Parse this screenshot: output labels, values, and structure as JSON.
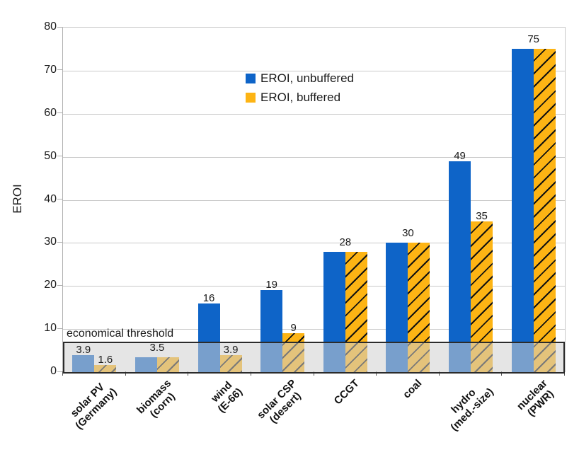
{
  "chart_data": {
    "type": "bar",
    "title": "",
    "ylabel": "EROI",
    "xlabel": "",
    "ylim": [
      0,
      80
    ],
    "ytick_step": 10,
    "yticks": [
      0,
      10,
      20,
      30,
      40,
      50,
      60,
      70,
      80
    ],
    "grid": "horizontal",
    "legend_position": "upper area, left-of-center",
    "categories": [
      "solar PV\n(Germany)",
      "biomass\n(corn)",
      "wind\n(E-66)",
      "solar CSP\n(desert)",
      "CCGT",
      "coal",
      "hydro\n(med.-size)",
      "nuclear\n(PWR)"
    ],
    "series": [
      {
        "name": "EROI, unbuffered",
        "color": "#0E64C8",
        "hatch": false,
        "values": [
          3.9,
          3.5,
          16,
          19,
          28,
          30,
          49,
          75
        ],
        "value_labels": [
          "3.9",
          "3.5",
          "16",
          "19",
          "28",
          "30",
          "49",
          "75"
        ]
      },
      {
        "name": "EROI, buffered",
        "color": "#FDB414",
        "hatch": true,
        "values": [
          1.6,
          3.5,
          3.9,
          9,
          28,
          30,
          35,
          75
        ],
        "value_labels": [
          "1.6",
          "3.5",
          "3.9",
          "9",
          "28",
          "30",
          "35",
          "75"
        ]
      }
    ],
    "threshold": {
      "label": "economical threshold",
      "value": 7
    },
    "colors": {
      "grid": "#c9c9c9",
      "axis": "#b0b0b0",
      "text": "#1a1a1a",
      "hatch_line": "#111111",
      "band_fill": "rgba(208,208,208,0.55)",
      "band_border": "#2b2b2b"
    }
  }
}
